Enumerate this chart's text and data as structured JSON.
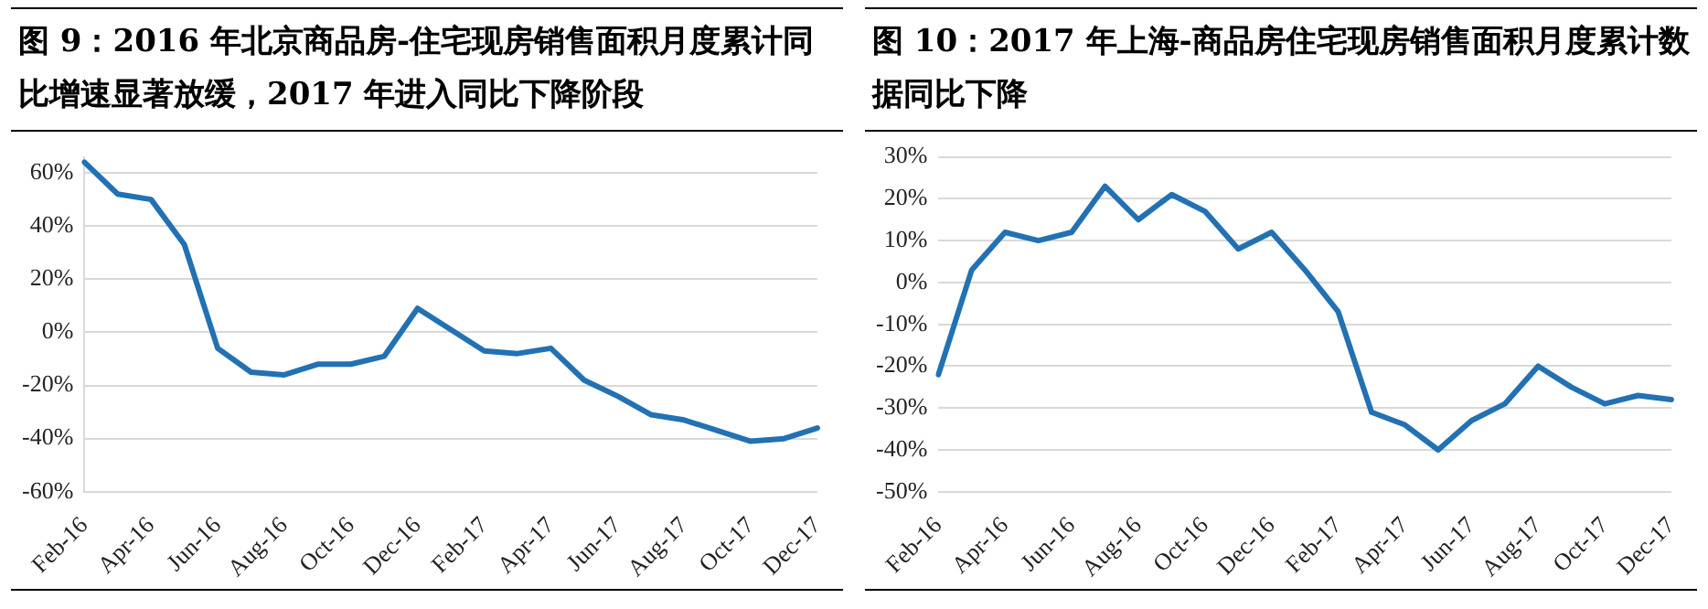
{
  "chart_data": [
    {
      "type": "line",
      "title": "图 9：2016 年北京商品房-住宅现房销售面积月度累计同比增速显著放缓，2017 年进入同比下降阶段",
      "categories": [
        "Feb-16",
        null,
        "Apr-16",
        null,
        "Jun-16",
        null,
        "Aug-16",
        null,
        "Oct-16",
        null,
        "Dec-16",
        null,
        "Feb-17",
        null,
        "Apr-17",
        null,
        "Jun-17",
        null,
        "Aug-17",
        null,
        "Oct-17",
        null,
        "Dec-17"
      ],
      "series": [
        {
          "color": "#2271b3",
          "values": [
            64,
            52,
            50,
            33,
            -6,
            -15,
            -16,
            -12,
            -12,
            -9,
            9,
            1,
            -7,
            -8,
            -6,
            -18,
            -24,
            -31,
            -33,
            -37,
            -41,
            -40,
            -36
          ]
        }
      ],
      "ylim": [
        -60,
        66
      ],
      "yticks": [
        {
          "value": -60,
          "label": "-60%"
        },
        {
          "value": -40,
          "label": "-40%"
        },
        {
          "value": -20,
          "label": "-20%"
        },
        {
          "value": 0,
          "label": "0%"
        },
        {
          "value": 20,
          "label": "20%"
        },
        {
          "value": 40,
          "label": "40%"
        },
        {
          "value": 60,
          "label": "60%"
        }
      ],
      "grid": "y",
      "legend": false,
      "marker": "none",
      "line_style": "solid"
    },
    {
      "type": "line",
      "title": "图 10：2017 年上海-商品房住宅现房销售面积月度累计数据同比下降",
      "categories": [
        "Feb-16",
        null,
        "Apr-16",
        null,
        "Jun-16",
        null,
        "Aug-16",
        null,
        "Oct-16",
        null,
        "Dec-16",
        null,
        "Feb-17",
        null,
        "Apr-17",
        null,
        "Jun-17",
        null,
        "Aug-17",
        null,
        "Oct-17",
        null,
        "Dec-17"
      ],
      "series": [
        {
          "color": "#2271b3",
          "values": [
            -22,
            3,
            12,
            10,
            12,
            23,
            15,
            21,
            17,
            8,
            12,
            3,
            -7,
            -31,
            -34,
            -40,
            -33,
            -29,
            -20,
            -25,
            -29,
            -27,
            -28
          ]
        }
      ],
      "ylim": [
        -50,
        30
      ],
      "yticks": [
        {
          "value": -50,
          "label": "-50%"
        },
        {
          "value": -40,
          "label": "-40%"
        },
        {
          "value": -30,
          "label": "-30%"
        },
        {
          "value": -20,
          "label": "-20%"
        },
        {
          "value": -10,
          "label": "-10%"
        },
        {
          "value": 0,
          "label": "0%"
        },
        {
          "value": 10,
          "label": "10%"
        },
        {
          "value": 20,
          "label": "20%"
        },
        {
          "value": 30,
          "label": "30%"
        }
      ],
      "grid": "y",
      "legend": false,
      "marker": "none",
      "line_style": "solid"
    }
  ]
}
